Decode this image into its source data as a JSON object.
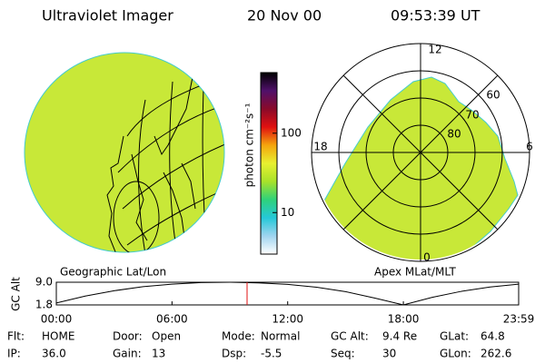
{
  "header": {
    "title": "Ultraviolet Imager",
    "date": "20 Nov 00",
    "time": "09:53:39 UT"
  },
  "colorbar": {
    "label": "photon cm⁻²s⁻¹",
    "log": true,
    "clim": [
      3,
      580
    ],
    "ticks": [
      10,
      100
    ],
    "colors": [
      "#ffffff",
      "#9fd4ef",
      "#25c8d8",
      "#2fd27a",
      "#a8e22a",
      "#e8f030",
      "#f5a50d",
      "#e01010",
      "#8a0a2a",
      "#50106a",
      "#000000"
    ]
  },
  "left_panel": {
    "caption": "Geographic Lat/Lon"
  },
  "right_panel": {
    "caption": "Apex MLat/MLT",
    "mlt_labels": [
      "12",
      "18",
      "6",
      "0"
    ],
    "mlat_labels": [
      "60",
      "70",
      "80"
    ]
  },
  "orbit_plot": {
    "ylabel": "GC Alt",
    "ylim": [
      1.8,
      9.0
    ],
    "yticks": [
      {
        "value": 9.0,
        "label": "9.0"
      },
      1.8
    ],
    "xlim": [
      0,
      23.98
    ],
    "xticks": [
      {
        "value": 0,
        "label": "00:00"
      },
      {
        "value": 6,
        "label": "06:00"
      },
      {
        "value": 12,
        "label": "12:00"
      },
      {
        "value": 18,
        "label": "18:00"
      },
      {
        "value": 23.98,
        "label": "23:59"
      }
    ],
    "x": [
      0,
      1.5,
      3,
      4.5,
      6,
      7.5,
      9,
      10.5,
      12,
      13.5,
      15,
      16.5,
      18,
      19.5,
      21,
      22.5,
      23.98
    ],
    "values": [
      2.4,
      4.6,
      6.3,
      7.6,
      8.4,
      8.9,
      9.0,
      8.8,
      8.3,
      7.4,
      6.0,
      4.0,
      1.8,
      4.2,
      6.1,
      7.5,
      8.4
    ],
    "current": 9.894,
    "line_color": "#000000",
    "marker_color": "#e01010"
  },
  "info": [
    [
      {
        "label": "Flt:",
        "value": "HOME"
      },
      {
        "label": "Door:",
        "value": "Open"
      },
      {
        "label": "Mode:",
        "value": "Normal"
      },
      {
        "label": "GC Alt:",
        "value": "9.4 Re"
      },
      {
        "label": "GLat:",
        "value": "64.8"
      }
    ],
    [
      {
        "label": "IP:",
        "value": "36.0"
      },
      {
        "label": "Gain:",
        "value": "13"
      },
      {
        "label": "Dsp:",
        "value": "-5.5"
      },
      {
        "label": "Seq:",
        "value": "30"
      },
      {
        "label": "GLon:",
        "value": "262.6"
      }
    ]
  ]
}
